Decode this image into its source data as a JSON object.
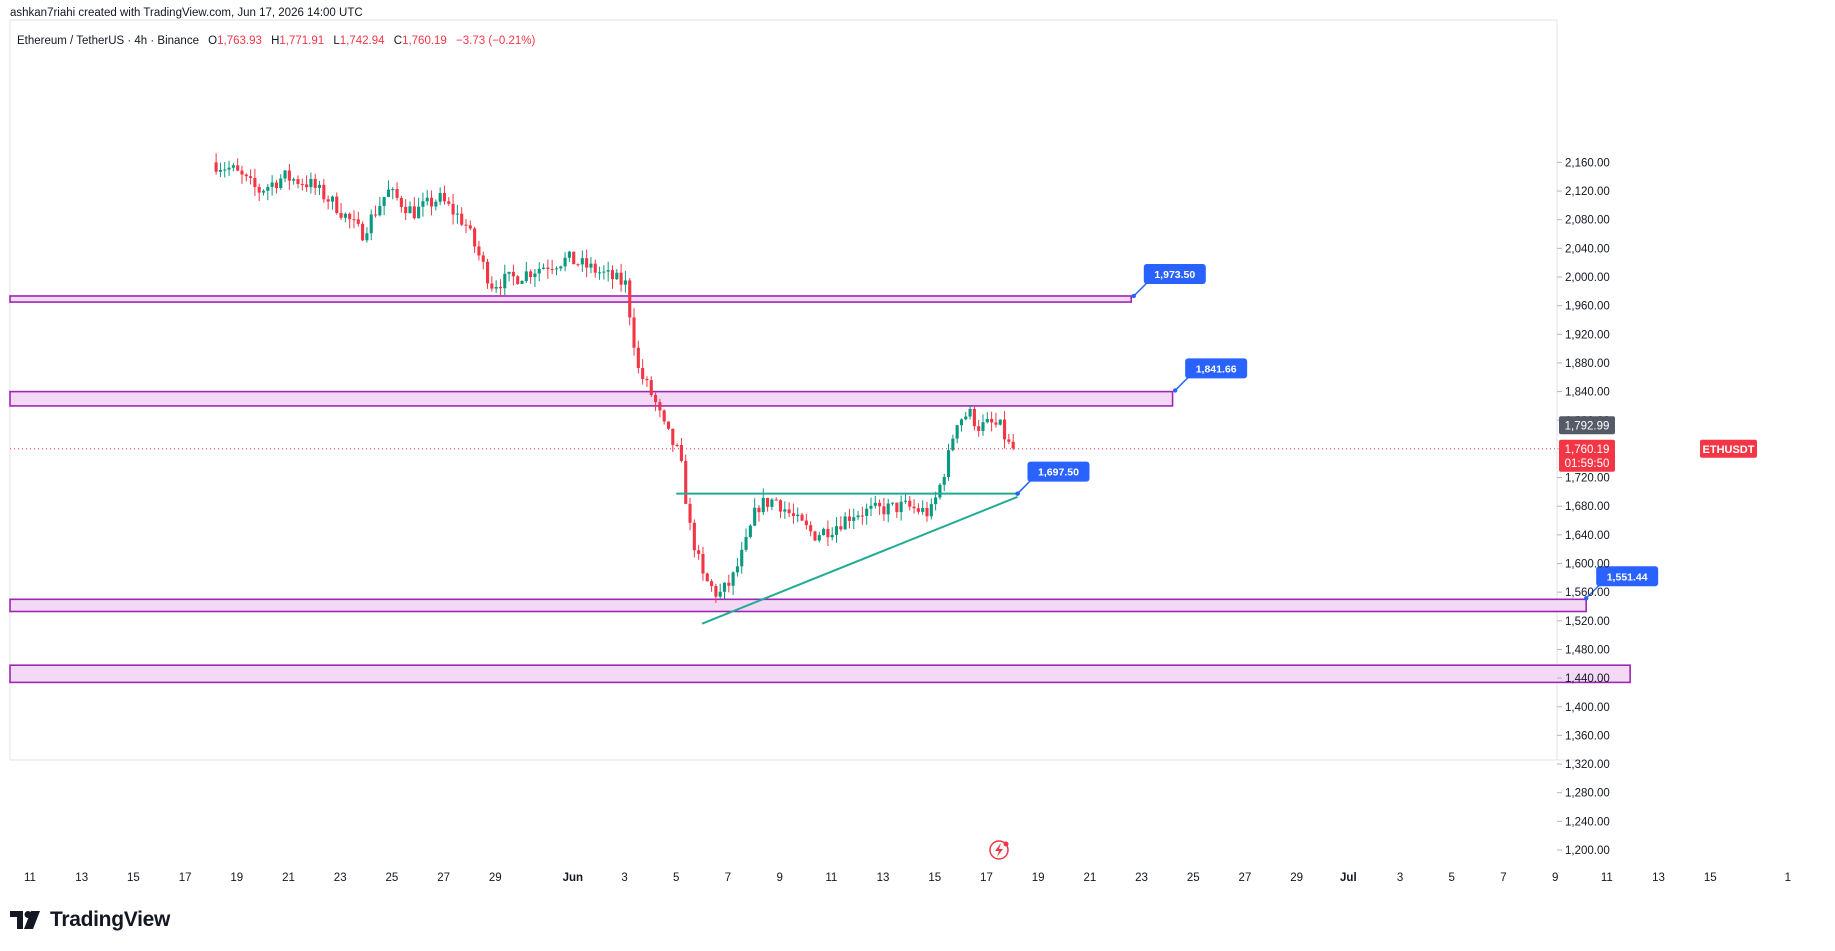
{
  "header": {
    "credit": "ashkan7riahi created with TradingView.com, Jun 17, 2026 14:00 UTC"
  },
  "legend": {
    "symbol": "Ethereum / TetherUS · 4h · Binance",
    "open_label": "O",
    "open": "1,763.93",
    "high_label": "H",
    "high": "1,771.91",
    "low_label": "L",
    "low": "1,742.94",
    "close_label": "C",
    "close": "1,760.19",
    "change": "−3.73 (−0.21%)"
  },
  "brand": {
    "name": "TradingView"
  },
  "colors": {
    "up": "#089981",
    "down": "#f23645",
    "zone_border": "#9c27b0",
    "zone_fill": "#f3d9f6",
    "callout": "#2962ff",
    "trendline": "#22ab94",
    "price_tag": "#f23645",
    "prev_tag": "#555a66"
  },
  "chart_data": {
    "type": "candlestick",
    "symbol": "ETHUSDT",
    "interval": "4h",
    "y_axis": {
      "min": 1180,
      "max": 2180,
      "ticks": [
        "2,160.00",
        "2,120.00",
        "2,080.00",
        "2,040.00",
        "2,000.00",
        "1,960.00",
        "1,920.00",
        "1,880.00",
        "1,840.00",
        "1,800.00",
        "1,760.00",
        "1,720.00",
        "1,680.00",
        "1,640.00",
        "1,600.00",
        "1,560.00",
        "1,520.00",
        "1,480.00",
        "1,440.00",
        "1,400.00",
        "1,360.00",
        "1,320.00",
        "1,280.00",
        "1,240.00",
        "1,200.00"
      ],
      "tick_values": [
        2160,
        2120,
        2080,
        2040,
        2000,
        1960,
        1920,
        1880,
        1840,
        1800,
        1760,
        1720,
        1680,
        1640,
        1600,
        1560,
        1520,
        1480,
        1440,
        1400,
        1360,
        1320,
        1280,
        1240,
        1200
      ]
    },
    "x_axis": {
      "labels": [
        "11",
        "13",
        "15",
        "17",
        "19",
        "21",
        "23",
        "25",
        "27",
        "29",
        "Jun",
        "3",
        "5",
        "7",
        "9",
        "11",
        "13",
        "15",
        "17",
        "19",
        "21",
        "23",
        "25",
        "27",
        "29",
        "Jul",
        "3",
        "5",
        "7",
        "9",
        "11",
        "13",
        "15",
        "1"
      ],
      "bold_labels": [
        "Jun",
        "Jul"
      ],
      "day_index": [
        0,
        2,
        4,
        6,
        8,
        10,
        12,
        14,
        16,
        18,
        21,
        23,
        25,
        27,
        29,
        31,
        33,
        35,
        37,
        39,
        41,
        43,
        45,
        47,
        49,
        51,
        53,
        55,
        57,
        59,
        61,
        63,
        65,
        68
      ]
    },
    "last_price": {
      "value": 1760.19,
      "label": "1,760.19",
      "countdown": "01:59:50",
      "symbol_tag": "ETHUSDT"
    },
    "prev_close_tag": {
      "value": 1792.99,
      "label": "1,792.99"
    },
    "zones": [
      {
        "top": 1973.5,
        "bottom": 1965,
        "from_day": -1,
        "to_day": 42.6
      },
      {
        "top": 1840,
        "bottom": 1820,
        "from_day": -1,
        "to_day": 44.2
      },
      {
        "top": 1550,
        "bottom": 1533,
        "from_day": -1,
        "to_day": 60.2
      },
      {
        "top": 1458,
        "bottom": 1434,
        "from_day": -1,
        "to_day": 61.9
      }
    ],
    "callouts": [
      {
        "label": "1,973.50",
        "price": 1973.5,
        "day": 42.7
      },
      {
        "label": "1,841.66",
        "price": 1841.66,
        "day": 44.3
      },
      {
        "label": "1,697.50",
        "price": 1697.5,
        "day": 38.2
      },
      {
        "label": "1,551.44",
        "price": 1551.44,
        "day": 60.2
      }
    ],
    "trendlines": [
      {
        "from_day": 25.0,
        "from_price": 1697.5,
        "to_day": 38.3,
        "to_price": 1697.5
      },
      {
        "from_day": 26.0,
        "from_price": 1516,
        "to_day": 38.2,
        "to_price": 1693
      }
    ],
    "anchors": [
      [
        7.2,
        2160
      ],
      [
        8,
        2150
      ],
      [
        9,
        2120
      ],
      [
        10,
        2140
      ],
      [
        11,
        2130
      ],
      [
        12,
        2100
      ],
      [
        13,
        2060
      ],
      [
        14,
        2120
      ],
      [
        15,
        2090
      ],
      [
        16,
        2110
      ],
      [
        17,
        2075
      ],
      [
        18,
        1990
      ],
      [
        19,
        2000
      ],
      [
        20,
        2015
      ],
      [
        21,
        2025
      ],
      [
        22,
        2010
      ],
      [
        23.2,
        1990
      ],
      [
        23.7,
        1870
      ],
      [
        24.3,
        1830
      ],
      [
        24.7,
        1790
      ],
      [
        25.3,
        1750
      ],
      [
        25.7,
        1650
      ],
      [
        26.2,
        1580
      ],
      [
        26.8,
        1555
      ],
      [
        27.3,
        1575
      ],
      [
        27.8,
        1620
      ],
      [
        28.3,
        1680
      ],
      [
        29,
        1690
      ],
      [
        29.8,
        1660
      ],
      [
        30.5,
        1640
      ],
      [
        31.2,
        1650
      ],
      [
        32,
        1670
      ],
      [
        33,
        1675
      ],
      [
        34,
        1680
      ],
      [
        35,
        1670
      ],
      [
        35.3,
        1700
      ],
      [
        35.7,
        1750
      ],
      [
        36,
        1800
      ],
      [
        36.5,
        1810
      ],
      [
        36.9,
        1790
      ],
      [
        37.3,
        1795
      ],
      [
        37.7,
        1790
      ],
      [
        38.1,
        1760
      ]
    ]
  }
}
